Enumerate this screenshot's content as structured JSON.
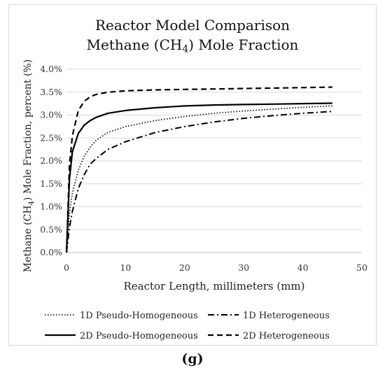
{
  "chart_data": {
    "type": "line",
    "title_line1": "Reactor Model Comparison",
    "title_line2_prefix": "Methane (CH",
    "title_line2_sub": "4",
    "title_line2_suffix": ") Mole Fraction",
    "xlabel": "Reactor Length, millimeters (mm)",
    "ylabel_prefix": "Methane (CH",
    "ylabel_sub": "4",
    "ylabel_suffix": ") Mole Fraction, percent (%)",
    "xlim": [
      0,
      50
    ],
    "ylim": [
      0,
      4.0
    ],
    "x_ticks": [
      0,
      10,
      20,
      30,
      40,
      50
    ],
    "x_tick_labels": [
      "0",
      "10",
      "20",
      "30",
      "40",
      "50"
    ],
    "y_ticks": [
      0,
      0.5,
      1.0,
      1.5,
      2.0,
      2.5,
      3.0,
      3.5,
      4.0
    ],
    "y_tick_labels": [
      "0.0%",
      "0.5%",
      "1.0%",
      "1.5%",
      "2.0%",
      "2.5%",
      "3.0%",
      "3.5%",
      "4.0%"
    ],
    "grid": "horizontal",
    "legend_position": "bottom",
    "series": [
      {
        "name": "1D Pseudo-Homogeneous",
        "style": "dotted",
        "x": [
          0,
          0.5,
          1,
          2,
          3,
          4,
          5,
          7,
          10,
          15,
          20,
          25,
          30,
          35,
          40,
          45
        ],
        "y": [
          0,
          0.85,
          1.3,
          1.8,
          2.1,
          2.3,
          2.45,
          2.62,
          2.75,
          2.88,
          2.97,
          3.04,
          3.09,
          3.13,
          3.17,
          3.2
        ]
      },
      {
        "name": "1D Heterogeneous",
        "style": "dashdot",
        "x": [
          0,
          0.5,
          1,
          2,
          3,
          4,
          5,
          7,
          10,
          15,
          20,
          25,
          30,
          35,
          40,
          45
        ],
        "y": [
          0,
          0.55,
          0.9,
          1.4,
          1.7,
          1.93,
          2.05,
          2.25,
          2.42,
          2.62,
          2.75,
          2.85,
          2.93,
          2.99,
          3.04,
          3.08
        ]
      },
      {
        "name": "2D Pseudo-Homogeneous",
        "style": "solid",
        "x": [
          0,
          0.5,
          1,
          2,
          3,
          4,
          5,
          7,
          10,
          15,
          20,
          25,
          30,
          35,
          40,
          45
        ],
        "y": [
          0,
          1.6,
          2.2,
          2.6,
          2.78,
          2.88,
          2.95,
          3.04,
          3.1,
          3.16,
          3.2,
          3.22,
          3.23,
          3.24,
          3.25,
          3.26
        ]
      },
      {
        "name": "2D Heterogeneous",
        "style": "dashed",
        "x": [
          0,
          0.5,
          1,
          2,
          3,
          4,
          5,
          7,
          10,
          15,
          20,
          25,
          30,
          35,
          40,
          45
        ],
        "y": [
          0,
          1.9,
          2.55,
          3.1,
          3.3,
          3.4,
          3.45,
          3.5,
          3.53,
          3.55,
          3.56,
          3.57,
          3.58,
          3.59,
          3.6,
          3.61
        ]
      }
    ]
  },
  "caption": "(g)"
}
